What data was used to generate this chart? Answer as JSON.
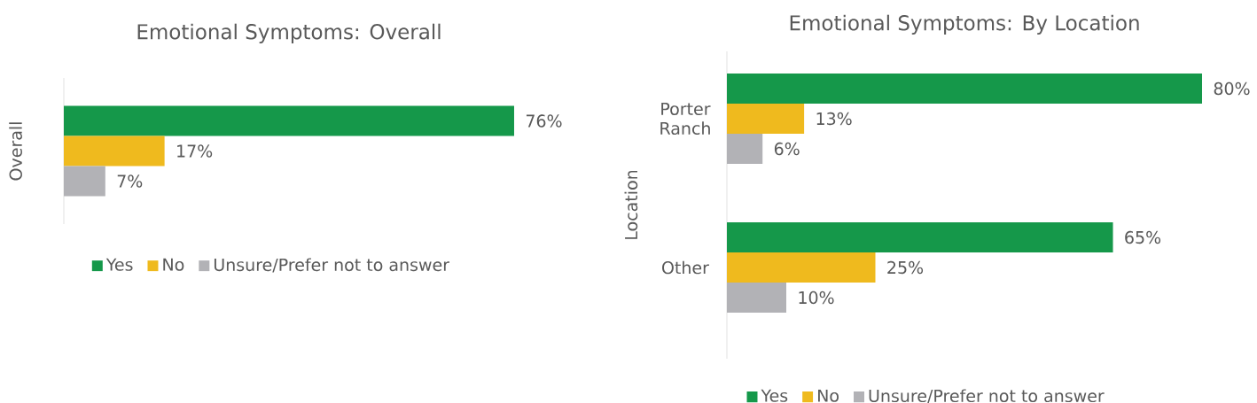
{
  "chart_data": [
    {
      "type": "bar",
      "orientation": "horizontal",
      "title": "Emotional Symptoms: Overall",
      "categories": [
        "Overall"
      ],
      "legend": "bottom",
      "series": [
        {
          "name": "Yes",
          "color": "#15984a",
          "values": [
            76
          ],
          "value_labels": [
            "76%"
          ]
        },
        {
          "name": "No",
          "color": "#efba1e",
          "values": [
            17
          ],
          "value_labels": [
            "17%"
          ]
        },
        {
          "name": "Unsure/Prefer not to answer",
          "color": "#b2b2b6",
          "values": [
            7
          ],
          "value_labels": [
            "7%"
          ]
        }
      ]
    },
    {
      "type": "bar",
      "orientation": "horizontal",
      "title": "Emotional Symptoms: By Location",
      "ylabel": "Location",
      "categories": [
        "Porter Ranch",
        "Other"
      ],
      "legend": "bottom",
      "series": [
        {
          "name": "Yes",
          "color": "#15984a",
          "values": [
            80,
            65
          ],
          "value_labels": [
            "80%",
            "65%"
          ]
        },
        {
          "name": "No",
          "color": "#efba1e",
          "values": [
            13,
            25
          ],
          "value_labels": [
            "13%",
            "25%"
          ]
        },
        {
          "name": "Unsure/Prefer not to answer",
          "color": "#b2b2b6",
          "values": [
            6,
            10
          ],
          "value_labels": [
            "6%",
            "10%"
          ]
        }
      ]
    }
  ]
}
